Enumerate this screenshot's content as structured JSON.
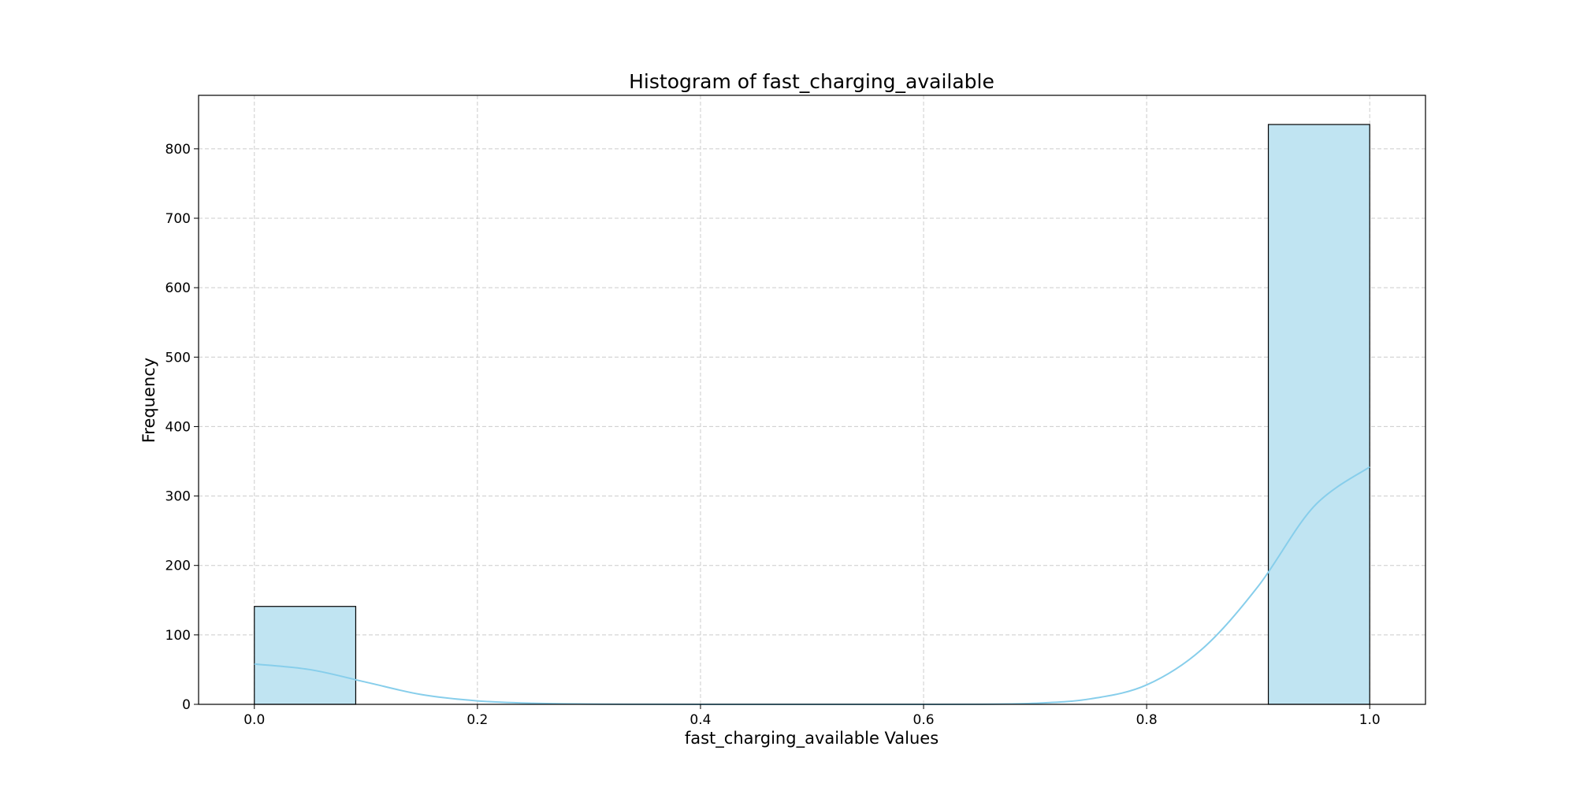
{
  "chart_data": {
    "type": "bar",
    "title": "Histogram of fast_charging_available",
    "xlabel": "fast_charging_available Values",
    "ylabel": "Frequency",
    "xlim": [
      -0.05,
      1.05
    ],
    "ylim": [
      0,
      877
    ],
    "x_ticks": [
      0.0,
      0.2,
      0.4,
      0.6,
      0.8,
      1.0
    ],
    "x_tick_labels": [
      "0.0",
      "0.2",
      "0.4",
      "0.6",
      "0.8",
      "1.0"
    ],
    "y_ticks": [
      0,
      100,
      200,
      300,
      400,
      500,
      600,
      700,
      800
    ],
    "y_tick_labels": [
      "0",
      "100",
      "200",
      "300",
      "400",
      "500",
      "600",
      "700",
      "800"
    ],
    "grid": true,
    "grid_style": "dashed",
    "bins": [
      {
        "x_start": 0.0,
        "x_end": 0.0909,
        "value": 141
      },
      {
        "x_start": 0.0909,
        "x_end": 0.1818,
        "value": 0
      },
      {
        "x_start": 0.1818,
        "x_end": 0.2727,
        "value": 0
      },
      {
        "x_start": 0.2727,
        "x_end": 0.3636,
        "value": 0
      },
      {
        "x_start": 0.3636,
        "x_end": 0.4545,
        "value": 0
      },
      {
        "x_start": 0.4545,
        "x_end": 0.5455,
        "value": 0
      },
      {
        "x_start": 0.5455,
        "x_end": 0.6364,
        "value": 0
      },
      {
        "x_start": 0.6364,
        "x_end": 0.7273,
        "value": 0
      },
      {
        "x_start": 0.7273,
        "x_end": 0.8182,
        "value": 0
      },
      {
        "x_start": 0.8182,
        "x_end": 0.9091,
        "value": 0
      },
      {
        "x_start": 0.9091,
        "x_end": 1.0,
        "value": 835
      }
    ],
    "kde_curve": {
      "x": [
        0.0,
        0.05,
        0.1,
        0.15,
        0.2,
        0.25,
        0.3,
        0.35,
        0.4,
        0.45,
        0.5,
        0.55,
        0.6,
        0.65,
        0.7,
        0.75,
        0.8,
        0.85,
        0.9,
        0.95,
        1.0
      ],
      "y": [
        58,
        50,
        32,
        14,
        5,
        1.5,
        0.4,
        0.1,
        0,
        0,
        0,
        0,
        0,
        0.2,
        1.5,
        8,
        28,
        80,
        170,
        285,
        342
      ]
    },
    "colors": {
      "bar_fill": "#c0e4f2",
      "bar_edge": "#000000",
      "kde_line": "#87ceeb",
      "grid": "#cccccc"
    }
  }
}
